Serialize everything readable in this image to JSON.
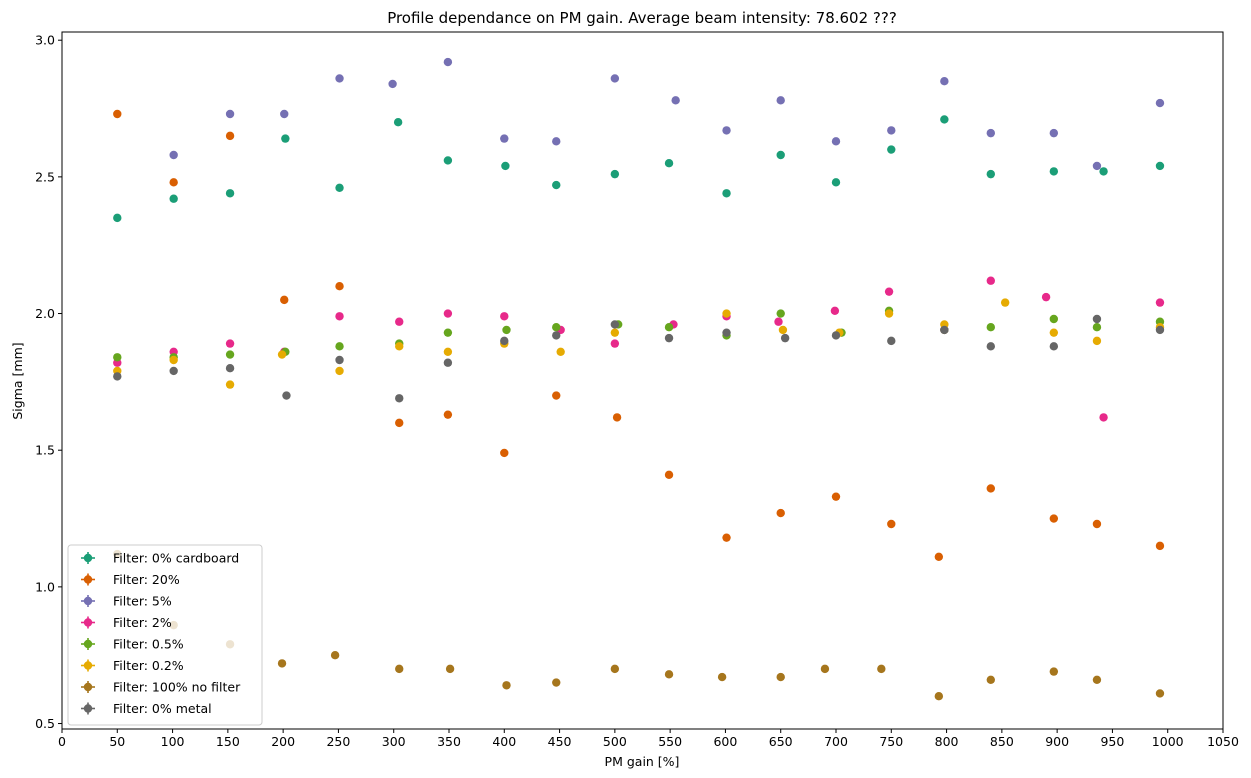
{
  "chart_data": {
    "type": "scatter",
    "title": "Profile dependance on PM gain. Average beam intensity: 78.602 ???",
    "xlabel": "PM gain [%]",
    "ylabel": "Sigma [mm]",
    "xlim": [
      0,
      1050
    ],
    "ylim": [
      0.48,
      3.03
    ],
    "xticks": [
      0,
      50,
      100,
      150,
      200,
      250,
      300,
      350,
      400,
      450,
      500,
      550,
      600,
      650,
      700,
      750,
      800,
      850,
      900,
      950,
      1000,
      1050
    ],
    "yticks": [
      0.5,
      1.0,
      1.5,
      2.0,
      2.5,
      3.0
    ],
    "xtick_labels": [
      "0",
      "50",
      "100",
      "150",
      "200",
      "250",
      "300",
      "350",
      "400",
      "450",
      "500",
      "550",
      "600",
      "650",
      "700",
      "750",
      "800",
      "850",
      "900",
      "950",
      "1000",
      "1050"
    ],
    "ytick_labels": [
      "0.5",
      "1.0",
      "1.5",
      "2.0",
      "2.5",
      "3.0"
    ],
    "grid": false,
    "legend_position": "lower-left",
    "series": [
      {
        "name": "Filter: 0% cardboard",
        "color": "#1b9e77",
        "x": [
          50,
          101,
          152,
          202,
          251,
          304,
          349,
          401,
          447,
          500,
          549,
          601,
          650,
          700,
          750,
          798,
          840,
          897,
          942,
          993
        ],
        "y": [
          2.35,
          2.42,
          2.44,
          2.64,
          2.46,
          2.7,
          2.56,
          2.54,
          2.47,
          2.51,
          2.55,
          2.44,
          2.58,
          2.48,
          2.6,
          2.71,
          2.51,
          2.52,
          2.52,
          2.54
        ]
      },
      {
        "name": "Filter: 20%",
        "color": "#d95f02",
        "x": [
          50,
          101,
          152,
          201,
          251,
          305,
          349,
          400,
          447,
          502,
          549,
          601,
          650,
          700,
          750,
          793,
          840,
          897,
          936,
          993
        ],
        "y": [
          2.73,
          2.48,
          2.65,
          2.05,
          2.1,
          1.6,
          1.63,
          1.49,
          1.7,
          1.62,
          1.41,
          1.18,
          1.27,
          1.33,
          1.23,
          1.11,
          1.36,
          1.25,
          1.23,
          1.15
        ]
      },
      {
        "name": "Filter: 5%",
        "color": "#7570b3",
        "x": [
          101,
          152,
          201,
          251,
          299,
          349,
          400,
          447,
          500,
          555,
          601,
          650,
          700,
          750,
          798,
          840,
          897,
          936,
          993
        ],
        "y": [
          2.58,
          2.73,
          2.73,
          2.86,
          2.84,
          2.92,
          2.64,
          2.63,
          2.86,
          2.78,
          2.67,
          2.78,
          2.63,
          2.67,
          2.85,
          2.66,
          2.66,
          2.54,
          2.77
        ]
      },
      {
        "name": "Filter: 2%",
        "color": "#e7298a",
        "x": [
          50,
          101,
          152,
          201,
          251,
          305,
          349,
          400,
          451,
          500,
          553,
          601,
          648,
          699,
          748,
          798,
          840,
          890,
          942,
          993
        ],
        "y": [
          1.82,
          1.86,
          1.89,
          1.86,
          1.99,
          1.97,
          2.0,
          1.99,
          1.94,
          1.89,
          1.96,
          1.99,
          1.97,
          2.01,
          2.08,
          1.94,
          2.12,
          2.06,
          1.62,
          2.04
        ]
      },
      {
        "name": "Filter: 0.5%",
        "color": "#66a61e",
        "x": [
          50,
          101,
          152,
          202,
          251,
          305,
          349,
          402,
          447,
          503,
          549,
          601,
          650,
          705,
          748,
          798,
          840,
          897,
          936,
          993
        ],
        "y": [
          1.84,
          1.84,
          1.85,
          1.86,
          1.88,
          1.89,
          1.93,
          1.94,
          1.95,
          1.96,
          1.95,
          1.92,
          2.0,
          1.93,
          2.01,
          1.94,
          1.95,
          1.98,
          1.95,
          1.97
        ]
      },
      {
        "name": "Filter: 0.2%",
        "color": "#e6ab02",
        "x": [
          50,
          101,
          152,
          199,
          251,
          305,
          349,
          400,
          451,
          500,
          601,
          652,
          703,
          748,
          798,
          853,
          897,
          936,
          993
        ],
        "y": [
          1.79,
          1.83,
          1.74,
          1.85,
          1.79,
          1.88,
          1.86,
          1.89,
          1.86,
          1.93,
          2.0,
          1.94,
          1.93,
          2.0,
          1.96,
          2.04,
          1.93,
          1.9,
          1.95
        ]
      },
      {
        "name": "Filter: 100% no filter",
        "color": "#a6761d",
        "x": [
          50,
          101,
          152,
          199,
          247,
          305,
          351,
          402,
          447,
          500,
          549,
          597,
          650,
          690,
          741,
          793,
          840,
          897,
          936,
          993
        ],
        "y": [
          1.12,
          0.86,
          0.79,
          0.72,
          0.75,
          0.7,
          0.7,
          0.64,
          0.65,
          0.7,
          0.68,
          0.67,
          0.67,
          0.7,
          0.7,
          0.6,
          0.66,
          0.69,
          0.66,
          0.61
        ]
      },
      {
        "name": "Filter: 0% metal",
        "color": "#666666",
        "x": [
          50,
          101,
          152,
          203,
          251,
          305,
          349,
          400,
          447,
          500,
          549,
          601,
          654,
          700,
          750,
          798,
          840,
          897,
          936,
          993
        ],
        "y": [
          1.77,
          1.79,
          1.8,
          1.7,
          1.83,
          1.69,
          1.82,
          1.9,
          1.92,
          1.96,
          1.91,
          1.93,
          1.91,
          1.92,
          1.9,
          1.94,
          1.88,
          1.88,
          1.98,
          1.94
        ]
      }
    ]
  }
}
